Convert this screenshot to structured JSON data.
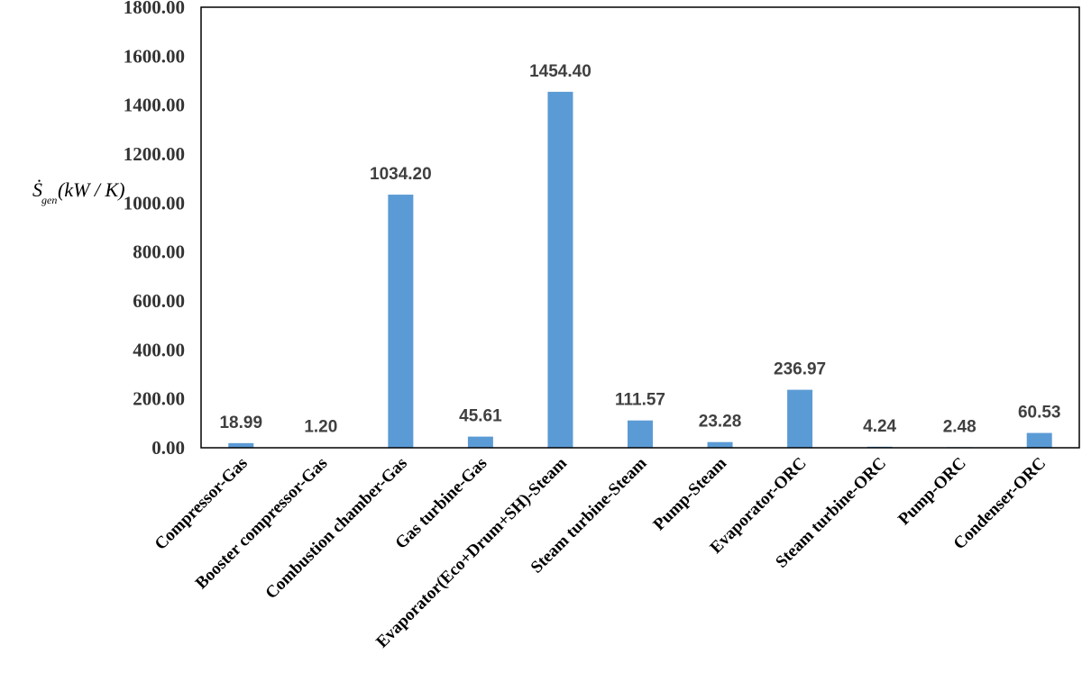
{
  "chart_data": {
    "type": "bar",
    "categories": [
      "Compressor-Gas",
      "Booster compressor-Gas",
      "Combustion chamber-Gas",
      "Gas turbine-Gas",
      "Evaporator(Eco+Drum+SH)-Steam",
      "Steam turbine-Steam",
      "Pump-Steam",
      "Evaporator-ORC",
      "Steam turbine-ORC",
      "Pump-ORC",
      "Condenser-ORC"
    ],
    "values": [
      18.99,
      1.2,
      1034.2,
      45.61,
      1454.4,
      111.57,
      23.28,
      236.97,
      4.24,
      2.48,
      60.53
    ],
    "data_labels": [
      "18.99",
      "1.20",
      "1034.20",
      "45.61",
      "1454.40",
      "111.57",
      "23.28",
      "236.97",
      "4.24",
      "2.48",
      "60.53"
    ],
    "ylim": [
      0,
      1800
    ],
    "yticks": [
      "0.00",
      "200.00",
      "400.00",
      "600.00",
      "800.00",
      "1000.00",
      "1200.00",
      "1400.00",
      "1600.00",
      "1800.00"
    ],
    "ylabel": {
      "symbol": "Ṡ",
      "subscript": "gen",
      "units": "(kW / K)"
    },
    "xlabel": "",
    "title": "",
    "grid": false,
    "legend": "none",
    "bar_color": "#5b9bd5"
  }
}
